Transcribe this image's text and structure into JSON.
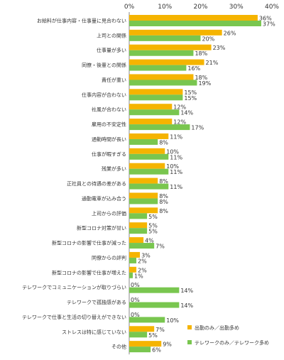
{
  "chart_data": {
    "type": "bar",
    "orientation": "horizontal",
    "xlim": [
      0,
      40
    ],
    "x_ticks": [
      "0%",
      "10%",
      "20%",
      "30%",
      "40%"
    ],
    "grid": false,
    "legend_position": "bottom-right",
    "value_suffix": "%",
    "categories": [
      "お給料が仕事内容・仕事量に見合わない",
      "上司との関係",
      "仕事量が多い",
      "同僚・後輩との関係",
      "責任が重い",
      "仕事内容が合わない",
      "社風が合わない",
      "雇用の不安定性",
      "通勤時間が長い",
      "仕事が暇すぎる",
      "残業が多い",
      "正社員との待遇の差がある",
      "通勤電車が込み合う",
      "上司からの評価",
      "新型コロナ対策が甘い",
      "新型コロナの影響で仕事が減った",
      "同僚からの評判",
      "新型コロナの影響で仕事が増えた",
      "テレワークでコミュニケーションが取りづらい",
      "テレワークで孤独感がある",
      "テレワークで仕事と生活の切り替えができない",
      "ストレスは特に感じていない",
      "その他"
    ],
    "series": [
      {
        "name": "出勤のみ／出勤多め",
        "color": "#f5b400",
        "values": [
          36,
          26,
          23,
          21,
          18,
          15,
          12,
          12,
          11,
          10,
          10,
          8,
          8,
          8,
          5,
          4,
          3,
          2,
          0,
          0,
          0,
          7,
          9
        ]
      },
      {
        "name": "テレワークのみ／テレワーク多め",
        "color": "#79c64f",
        "values": [
          37,
          20,
          18,
          16,
          19,
          15,
          14,
          17,
          8,
          11,
          11,
          11,
          8,
          5,
          5,
          7,
          2,
          1,
          14,
          14,
          10,
          5,
          6
        ]
      }
    ]
  }
}
